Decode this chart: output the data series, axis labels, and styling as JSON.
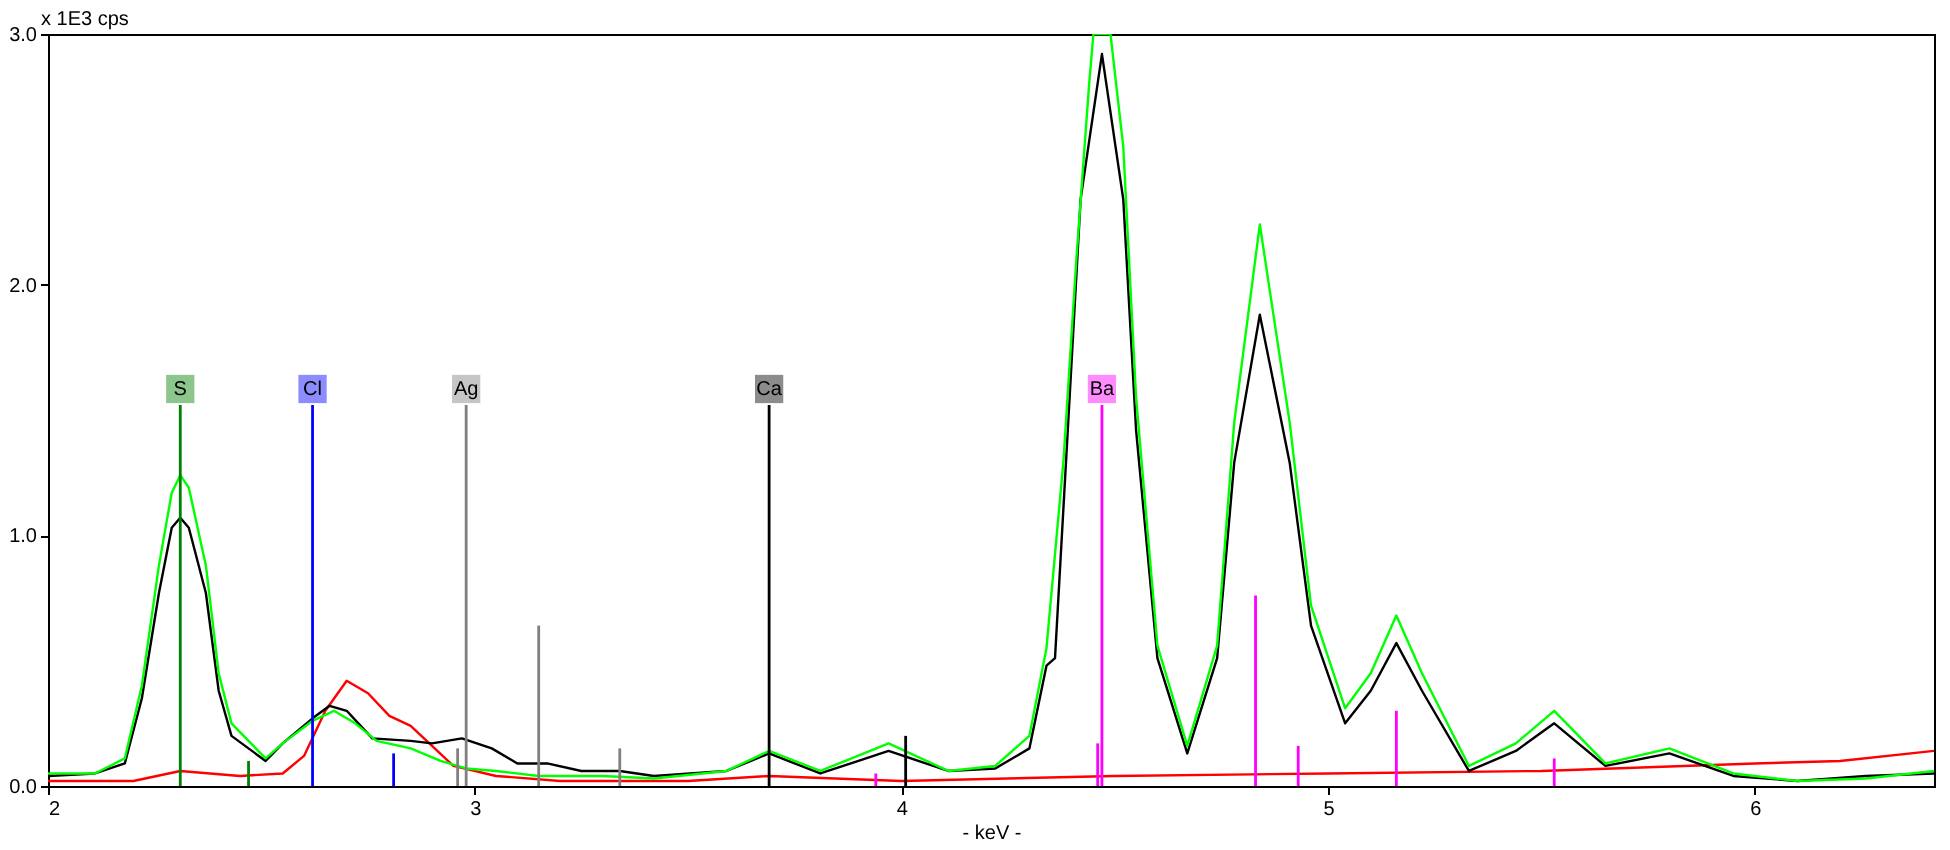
{
  "chart_data": {
    "type": "line",
    "xlabel": "- keV -",
    "ylabel": "x 1E3 cps",
    "xlim": [
      2,
      6.42
    ],
    "ylim": [
      0,
      3.0
    ],
    "xticks": [
      2,
      3,
      4,
      5,
      6
    ],
    "yticks": [
      {
        "value": 0,
        "label": "0.0"
      },
      {
        "value": 1,
        "label": "1.0"
      },
      {
        "value": 2,
        "label": "2.0"
      },
      {
        "value": 3,
        "label": "3.0"
      }
    ],
    "grid": false,
    "series": [
      {
        "color": "#ff0000",
        "x": [
          2.0,
          2.2,
          2.31,
          2.45,
          2.55,
          2.6,
          2.65,
          2.7,
          2.75,
          2.8,
          2.85,
          2.9,
          2.95,
          3.05,
          3.2,
          3.5,
          3.69,
          4.0,
          4.5,
          5.0,
          5.5,
          6.0,
          6.2,
          6.42
        ],
        "values": [
          0.02,
          0.02,
          0.06,
          0.04,
          0.05,
          0.12,
          0.3,
          0.42,
          0.37,
          0.28,
          0.24,
          0.16,
          0.08,
          0.04,
          0.02,
          0.02,
          0.04,
          0.02,
          0.04,
          0.05,
          0.06,
          0.09,
          0.1,
          0.14
        ]
      },
      {
        "color": "#000000",
        "x": [
          2.0,
          2.11,
          2.18,
          2.22,
          2.26,
          2.29,
          2.31,
          2.33,
          2.37,
          2.4,
          2.43,
          2.51,
          2.55,
          2.62,
          2.66,
          2.7,
          2.76,
          2.85,
          2.9,
          2.97,
          3.04,
          3.1,
          3.17,
          3.25,
          3.34,
          3.42,
          3.59,
          3.69,
          3.81,
          3.97,
          4.11,
          4.22,
          4.3,
          4.34,
          4.36,
          4.39,
          4.42,
          4.47,
          4.52,
          4.55,
          4.6,
          4.67,
          4.74,
          4.78,
          4.84,
          4.91,
          4.96,
          5.04,
          5.1,
          5.16,
          5.22,
          5.33,
          5.44,
          5.53,
          5.65,
          5.8,
          5.95,
          6.1,
          6.26,
          6.42
        ],
        "values": [
          0.04,
          0.05,
          0.09,
          0.35,
          0.77,
          1.03,
          1.07,
          1.03,
          0.77,
          0.38,
          0.2,
          0.1,
          0.17,
          0.27,
          0.32,
          0.3,
          0.19,
          0.18,
          0.17,
          0.19,
          0.15,
          0.09,
          0.09,
          0.06,
          0.06,
          0.04,
          0.06,
          0.13,
          0.05,
          0.14,
          0.06,
          0.07,
          0.15,
          0.48,
          0.51,
          1.42,
          2.34,
          2.92,
          2.34,
          1.42,
          0.51,
          0.13,
          0.51,
          1.29,
          1.88,
          1.29,
          0.64,
          0.25,
          0.38,
          0.57,
          0.38,
          0.06,
          0.14,
          0.25,
          0.08,
          0.13,
          0.04,
          0.02,
          0.04,
          0.05
        ]
      },
      {
        "color": "#00ff00",
        "x": [
          2.0,
          2.11,
          2.18,
          2.22,
          2.26,
          2.29,
          2.31,
          2.33,
          2.37,
          2.4,
          2.43,
          2.51,
          2.55,
          2.62,
          2.67,
          2.72,
          2.77,
          2.85,
          2.92,
          2.98,
          3.05,
          3.15,
          3.3,
          3.42,
          3.59,
          3.69,
          3.81,
          3.97,
          4.11,
          4.22,
          4.3,
          4.34,
          4.38,
          4.41,
          4.44,
          4.45,
          4.49,
          4.52,
          4.55,
          4.6,
          4.67,
          4.74,
          4.78,
          4.84,
          4.91,
          4.96,
          5.04,
          5.1,
          5.16,
          5.22,
          5.33,
          5.44,
          5.53,
          5.65,
          5.8,
          5.95,
          6.1,
          6.26,
          6.42
        ],
        "values": [
          0.05,
          0.05,
          0.11,
          0.4,
          0.88,
          1.17,
          1.24,
          1.19,
          0.88,
          0.45,
          0.25,
          0.11,
          0.17,
          0.26,
          0.3,
          0.25,
          0.18,
          0.15,
          0.1,
          0.07,
          0.06,
          0.04,
          0.04,
          0.03,
          0.06,
          0.14,
          0.06,
          0.17,
          0.06,
          0.08,
          0.2,
          0.55,
          1.3,
          2.1,
          2.8,
          3.0,
          3.0,
          2.55,
          1.55,
          0.56,
          0.16,
          0.56,
          1.45,
          2.24,
          1.45,
          0.72,
          0.31,
          0.45,
          0.68,
          0.45,
          0.08,
          0.17,
          0.3,
          0.09,
          0.15,
          0.05,
          0.02,
          0.03,
          0.06
        ]
      },
      {
        "type": "bar",
        "x": [
          2.31,
          2.47,
          2.62,
          2.81,
          2.96,
          2.98,
          3.15,
          3.34,
          3.69,
          3.94,
          4.01,
          4.46,
          4.47,
          4.83,
          4.93,
          5.16,
          5.53
        ],
        "values": [
          1.52,
          0.1,
          1.52,
          0.13,
          0.15,
          1.52,
          0.64,
          0.15,
          1.52,
          0.05,
          0.2,
          0.17,
          1.52,
          0.76,
          0.16,
          0.3,
          0.11
        ],
        "colors": [
          "#008000",
          "#008000",
          "#0000ff",
          "#0000ff",
          "#808080",
          "#808080",
          "#808080",
          "#808080",
          "#000000",
          "#ff00ff",
          "#000000",
          "#ff00ff",
          "#ff00ff",
          "#ff00ff",
          "#ff00ff",
          "#ff00ff",
          "#ff00ff"
        ]
      }
    ],
    "annotations": [
      {
        "text": "S",
        "x": 2.31,
        "y": 1.52
      },
      {
        "text": "Cl",
        "x": 2.62,
        "y": 1.52
      },
      {
        "text": "Ag",
        "x": 2.98,
        "y": 1.52
      },
      {
        "text": "Ca",
        "x": 3.69,
        "y": 1.52
      },
      {
        "text": "Ba",
        "x": 4.47,
        "y": 1.52
      }
    ]
  }
}
